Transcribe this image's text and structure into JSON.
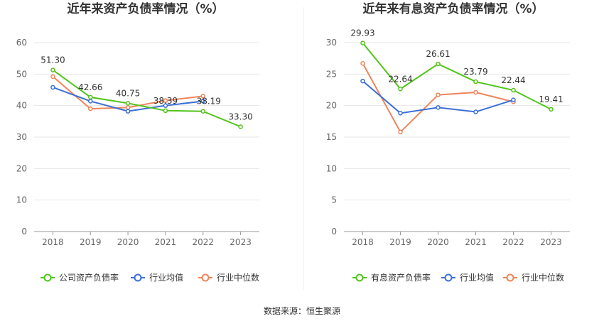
{
  "source": "数据来源：恒生聚源",
  "chart_data": [
    {
      "type": "line",
      "title": "近年来资产负债率情况（%）",
      "categories": [
        "2018",
        "2019",
        "2020",
        "2021",
        "2022",
        "2023"
      ],
      "ylim": [
        0,
        60
      ],
      "yticks": [
        "0",
        "10",
        "20",
        "30",
        "40",
        "50",
        "60"
      ],
      "grid": true,
      "legend_position": "bottom",
      "series": [
        {
          "name": "公司资产负债率",
          "color": "#52c41a",
          "values": [
            51.3,
            42.66,
            40.75,
            38.39,
            38.19,
            33.3
          ],
          "labels": [
            "51.30",
            "42.66",
            "40.75",
            "38.39",
            "38.19",
            "33.30"
          ]
        },
        {
          "name": "行业均值",
          "color": "#3a6fd6",
          "values": [
            45.8,
            41.4,
            38.2,
            40.0,
            41.4,
            null
          ],
          "labels": []
        },
        {
          "name": "行业中位数",
          "color": "#f0845a",
          "values": [
            49.2,
            39.0,
            39.4,
            41.6,
            43.0,
            null
          ],
          "labels": []
        }
      ]
    },
    {
      "type": "line",
      "title": "近年来有息资产负债率情况（%）",
      "categories": [
        "2018",
        "2019",
        "2020",
        "2021",
        "2022",
        "2023"
      ],
      "ylim": [
        0,
        30
      ],
      "yticks": [
        "0",
        "5",
        "10",
        "15",
        "20",
        "25",
        "30"
      ],
      "grid": true,
      "legend_position": "bottom",
      "series": [
        {
          "name": "有息资产负债率",
          "color": "#52c41a",
          "values": [
            29.93,
            22.64,
            26.61,
            23.79,
            22.44,
            19.41
          ],
          "labels": [
            "29.93",
            "22.64",
            "26.61",
            "23.79",
            "22.44",
            "19.41"
          ]
        },
        {
          "name": "行业均值",
          "color": "#3a6fd6",
          "values": [
            23.9,
            18.8,
            19.7,
            19.0,
            20.9,
            null
          ],
          "labels": []
        },
        {
          "name": "行业中位数",
          "color": "#f0845a",
          "values": [
            26.7,
            15.8,
            21.7,
            22.1,
            20.6,
            null
          ],
          "labels": []
        }
      ]
    }
  ]
}
